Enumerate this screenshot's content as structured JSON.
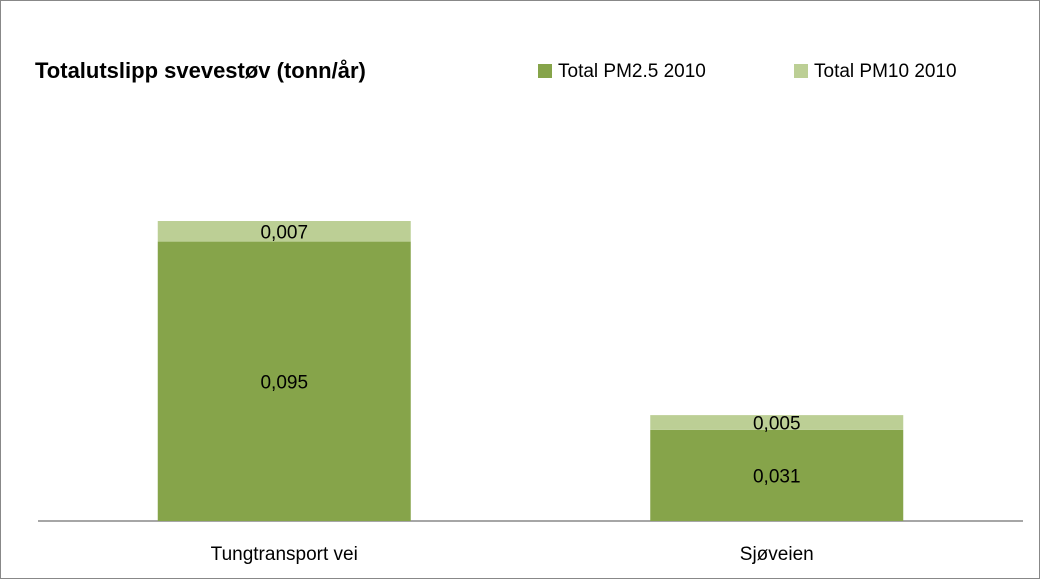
{
  "chart_data": {
    "type": "stacked_bar",
    "title": "Totalutslipp svevestøv (tonn/år)",
    "categories": [
      "Tungtransport vei",
      "Sjøveien"
    ],
    "series": [
      {
        "name": "Total PM2.5 2010",
        "color": "#86a44a",
        "values": [
          0.095,
          0.031
        ],
        "value_labels": [
          "0,095",
          "0,031"
        ]
      },
      {
        "name": "Total PM10 2010",
        "color": "#bccf95",
        "values": [
          0.007,
          0.005
        ],
        "value_labels": [
          "0,007",
          "0,005"
        ]
      }
    ],
    "legend": "top-right"
  }
}
